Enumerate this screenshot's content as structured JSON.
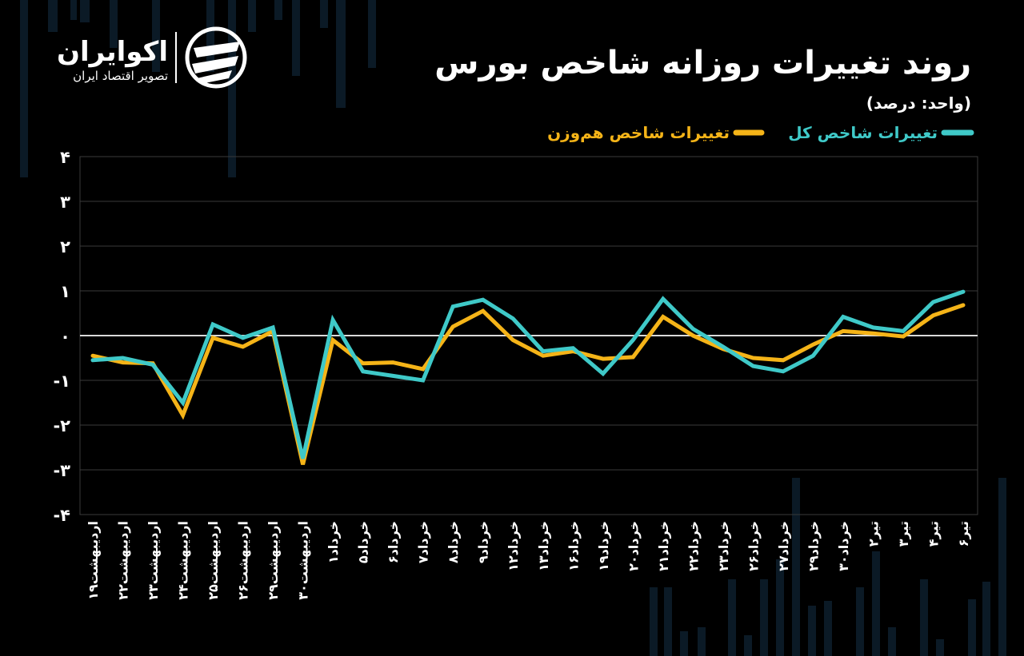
{
  "brand": {
    "name": "اکوایران",
    "tagline": "تصویر اقتصاد ایران",
    "logo_icon": "ecoiran-logo-icon"
  },
  "header": {
    "title": "روند تغییرات روزانه شاخص بورس",
    "unit": "(واحد: درصد)"
  },
  "colors": {
    "background": "#000000",
    "series_total": "#3fc9c8",
    "series_equal": "#f5b418",
    "grid": "#3a3a3a",
    "zero_line": "#d9d9d9"
  },
  "chart_data": {
    "type": "line",
    "title": "روند تغییرات روزانه شاخص بورس",
    "ylabel": "(واحد: درصد)",
    "xlabel": "",
    "ylim": [
      -4,
      4
    ],
    "yticks": [
      {
        "value": 4,
        "label": "۴"
      },
      {
        "value": 3,
        "label": "۳"
      },
      {
        "value": 2,
        "label": "۲"
      },
      {
        "value": 1,
        "label": "۱"
      },
      {
        "value": 0,
        "label": "۰"
      },
      {
        "value": -1,
        "label": "-۱"
      },
      {
        "value": -2,
        "label": "-۲"
      },
      {
        "value": -3,
        "label": "-۳"
      },
      {
        "value": -4,
        "label": "-۴"
      }
    ],
    "grid": true,
    "legend_position": "top-right",
    "categories": [
      "اردیبهشت۱۹",
      "اردیبهشت۲۲",
      "اردیبهشت۲۳",
      "اردیبهشت۲۴",
      "اردیبهشت۲۵",
      "اردیبهشت۲۶",
      "اردیبهشت۲۹",
      "اردیبهشت۳۰",
      "خرداد۱",
      "خرداد۵",
      "خرداد۶",
      "خرداد۷",
      "خرداد۸",
      "خرداد۹",
      "خرداد۱۲",
      "خرداد۱۳",
      "خرداد۱۶",
      "خرداد۱۹",
      "خرداد۲۰",
      "خرداد۲۱",
      "خرداد۲۲",
      "خرداد۲۳",
      "خرداد۲۶",
      "خرداد۲۷",
      "خرداد۲۹",
      "خرداد۳۰",
      "تیر۲",
      "تیر۳",
      "تیر۴",
      "تیر۶"
    ],
    "series": [
      {
        "name": "تغییرات شاخص کل",
        "color": "#3fc9c8",
        "values": [
          -0.55,
          -0.5,
          -0.65,
          -1.5,
          0.25,
          -0.05,
          0.18,
          -2.75,
          0.35,
          -0.8,
          -0.9,
          -1.0,
          0.65,
          0.8,
          0.38,
          -0.35,
          -0.28,
          -0.85,
          -0.1,
          0.82,
          0.15,
          -0.25,
          -0.68,
          -0.8,
          -0.45,
          0.42,
          0.18,
          0.1,
          0.75,
          0.98
        ]
      },
      {
        "name": "تغییرات شاخص هم‌وزن",
        "color": "#f5b418",
        "values": [
          -0.45,
          -0.6,
          -0.62,
          -1.78,
          -0.05,
          -0.25,
          0.1,
          -2.88,
          -0.1,
          -0.62,
          -0.6,
          -0.75,
          0.2,
          0.55,
          -0.1,
          -0.45,
          -0.35,
          -0.52,
          -0.48,
          0.42,
          0.0,
          -0.3,
          -0.5,
          -0.55,
          -0.2,
          0.1,
          0.05,
          -0.02,
          0.45,
          0.68
        ]
      }
    ]
  }
}
